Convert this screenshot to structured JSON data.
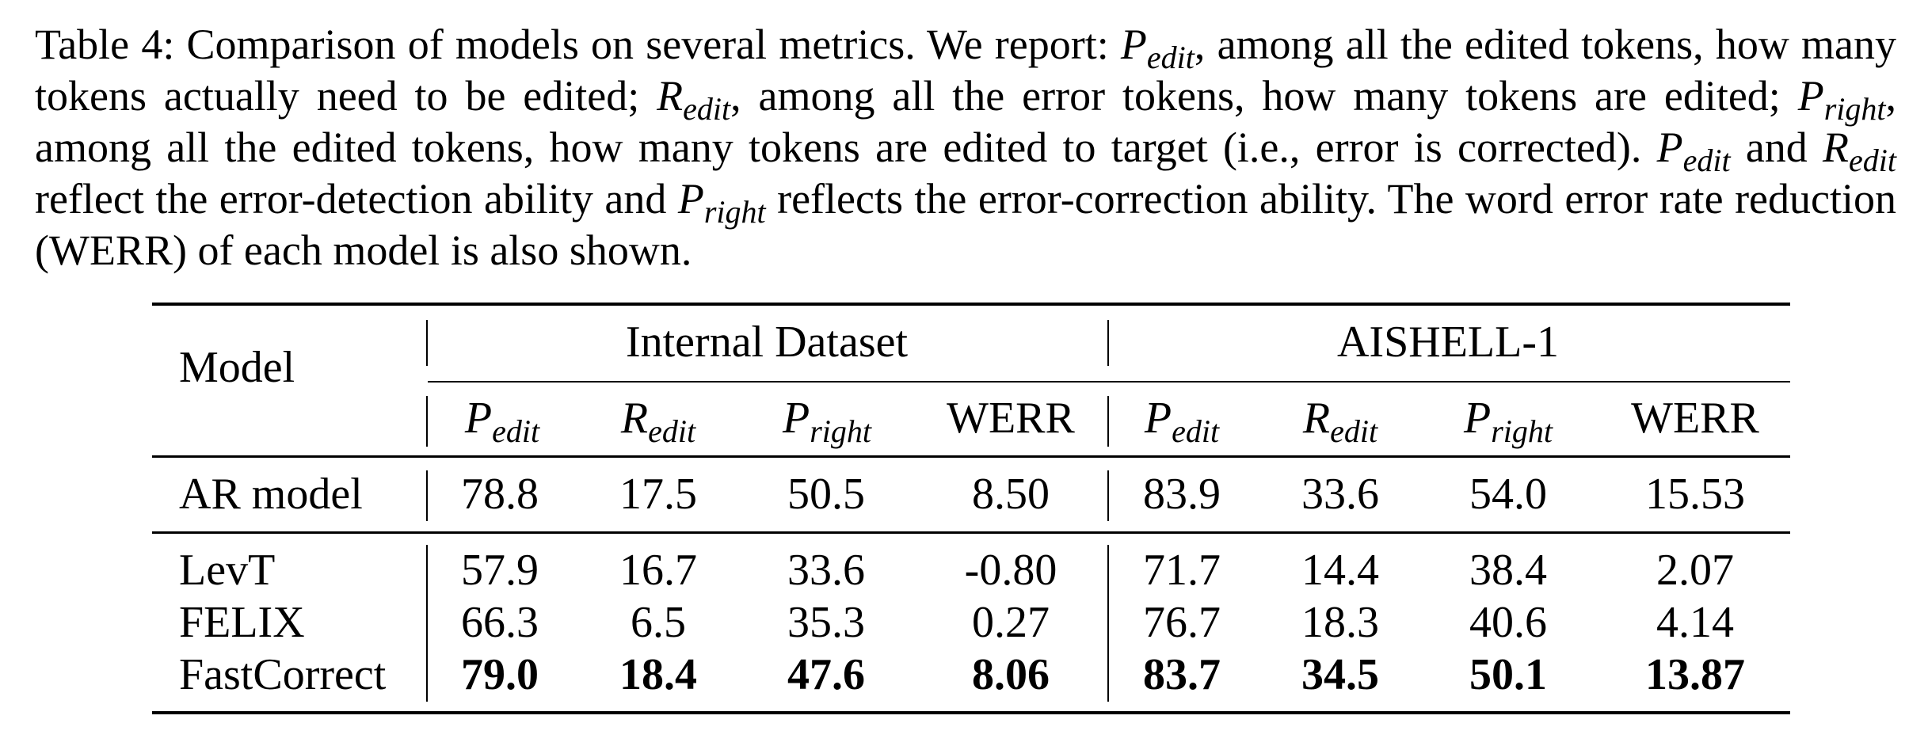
{
  "caption": {
    "label": "Table 4:",
    "s1": " Comparison of models on several metrics. We report: ",
    "s2": ", among all the edited tokens, how many tokens actually need to be edited; ",
    "s3": ", among all the error tokens, how many tokens are edited; ",
    "s4": ", among all the edited tokens, how many tokens are edited to target (i.e., error is corrected). ",
    "s5": " and ",
    "s6": " reflect the error-detection ability and ",
    "s7": " reflects the error-correction ability. The word error rate reduction (WERR) of each model is also shown."
  },
  "symbols": {
    "P": "P",
    "R": "R",
    "edit": "edit",
    "right": "right"
  },
  "table": {
    "model_header": "Model",
    "group1": "Internal Dataset",
    "group2": "AISHELL-1",
    "werr": "WERR",
    "rows": [
      {
        "model": "AR model",
        "v": [
          "78.8",
          "17.5",
          "50.5",
          "8.50",
          "83.9",
          "33.6",
          "54.0",
          "15.53"
        ]
      },
      {
        "model": "LevT",
        "v": [
          "57.9",
          "16.7",
          "33.6",
          "-0.80",
          "71.7",
          "14.4",
          "38.4",
          "2.07"
        ]
      },
      {
        "model": "FELIX",
        "v": [
          "66.3",
          "6.5",
          "35.3",
          "0.27",
          "76.7",
          "18.3",
          "40.6",
          "4.14"
        ]
      },
      {
        "model": "FastCorrect",
        "v": [
          "79.0",
          "18.4",
          "47.6",
          "8.06",
          "83.7",
          "34.5",
          "50.1",
          "13.87"
        ],
        "bold": true
      }
    ]
  }
}
